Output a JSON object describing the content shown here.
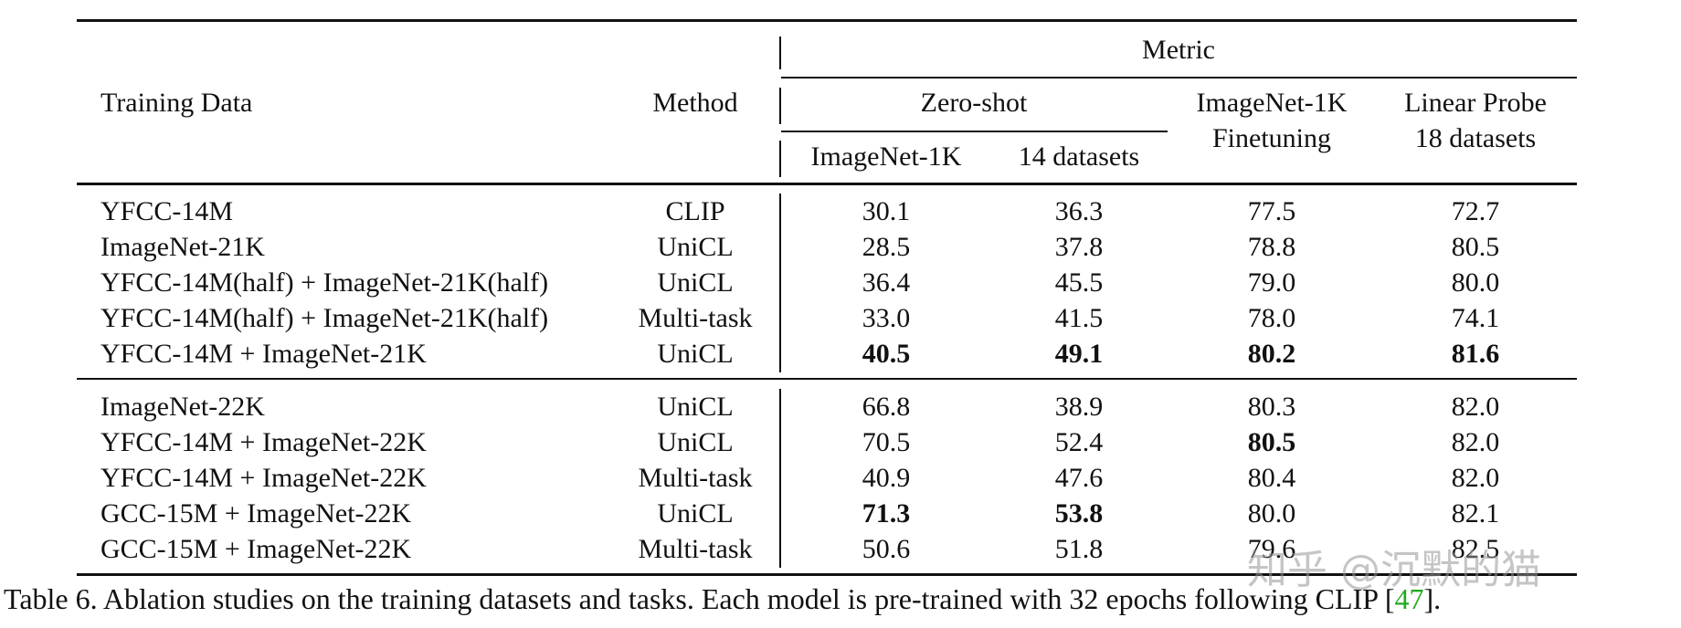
{
  "table": {
    "headers": {
      "training_data": "Training Data",
      "method": "Method",
      "metric": "Metric",
      "zero_shot": "Zero-shot",
      "zs_imagenet": "ImageNet-1K",
      "zs_14": "14 datasets",
      "ft_line1": "ImageNet-1K",
      "ft_line2": "Finetuning",
      "lp_line1": "Linear Probe",
      "lp_line2": "18 datasets"
    },
    "group1": [
      {
        "data": "YFCC-14M",
        "method": "CLIP",
        "zs_in": "30.1",
        "zs_14": "36.3",
        "ft": "77.5",
        "lp": "72.7"
      },
      {
        "data": "ImageNet-21K",
        "method": "UniCL",
        "zs_in": "28.5",
        "zs_14": "37.8",
        "ft": "78.8",
        "lp": "80.5"
      },
      {
        "data": "YFCC-14M(half) + ImageNet-21K(half)",
        "method": "UniCL",
        "zs_in": "36.4",
        "zs_14": "45.5",
        "ft": "79.0",
        "lp": "80.0"
      },
      {
        "data": "YFCC-14M(half) + ImageNet-21K(half)",
        "method": "Multi-task",
        "zs_in": "33.0",
        "zs_14": "41.5",
        "ft": "78.0",
        "lp": "74.1"
      },
      {
        "data": "YFCC-14M + ImageNet-21K",
        "method": "UniCL",
        "zs_in": "40.5",
        "zs_14": "49.1",
        "ft": "80.2",
        "lp": "81.6"
      }
    ],
    "group2": [
      {
        "data": "ImageNet-22K",
        "method": "UniCL",
        "zs_in": "66.8",
        "zs_14": "38.9",
        "ft": "80.3",
        "lp": "82.0"
      },
      {
        "data": "YFCC-14M + ImageNet-22K",
        "method": "UniCL",
        "zs_in": "70.5",
        "zs_14": "52.4",
        "ft": "80.5",
        "lp": "82.0"
      },
      {
        "data": "YFCC-14M + ImageNet-22K",
        "method": "Multi-task",
        "zs_in": "40.9",
        "zs_14": "47.6",
        "ft": "80.4",
        "lp": "82.0"
      },
      {
        "data": "GCC-15M + ImageNet-22K",
        "method": "UniCL",
        "zs_in": "71.3",
        "zs_14": "53.8",
        "ft": "80.0",
        "lp": "82.1"
      },
      {
        "data": "GCC-15M + ImageNet-22K",
        "method": "Multi-task",
        "zs_in": "50.6",
        "zs_14": "51.8",
        "ft": "79.6",
        "lp": "82.5"
      }
    ]
  },
  "caption": {
    "text": "Table 6. Ablation studies on the training datasets and tasks. Each model is pre-trained with 32 epochs following CLIP [",
    "ref": "47",
    "tail": "]."
  },
  "watermark": "知乎 @沉默的猫",
  "colors": {
    "ref": "#22aa22",
    "rule": "#111111"
  }
}
